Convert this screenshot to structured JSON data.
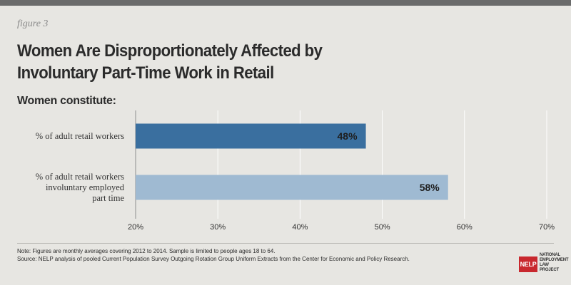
{
  "figure_label": "figure 3",
  "title_line1": "Women Are Disproportionately Affected by",
  "title_line2": "Involuntary Part-Time Work in Retail",
  "subtitle": "Women constitute:",
  "chart_data": {
    "type": "bar",
    "orientation": "horizontal",
    "categories": [
      [
        "% of adult retail workers"
      ],
      [
        "% of adult retail workers",
        "involuntary employed",
        "part time"
      ]
    ],
    "values": [
      48,
      58
    ],
    "value_labels": [
      "48%",
      "58%"
    ],
    "bar_colors": [
      "#3a6f9f",
      "#9fbad2"
    ],
    "xlim": [
      20,
      70
    ],
    "xticks": [
      20,
      30,
      40,
      50,
      60,
      70
    ],
    "xtick_labels": [
      "20%",
      "30%",
      "40%",
      "50%",
      "60%",
      "70%"
    ],
    "grid": true
  },
  "note_line1": "Note: Figures are monthly averages covering 2012 to 2014.  Sample is limited to people ages 18 to 64.",
  "note_line2": "Source: NELP analysis of pooled Current Population Survey Outgoing Rotation Group Uniform Extracts from the Center for Economic and Policy Research.",
  "logo": {
    "mark": "NELP",
    "text_lines": [
      "NATIONAL",
      "EMPLOYMENT",
      "LAW",
      "PROJECT"
    ],
    "color": "#c8282e"
  }
}
